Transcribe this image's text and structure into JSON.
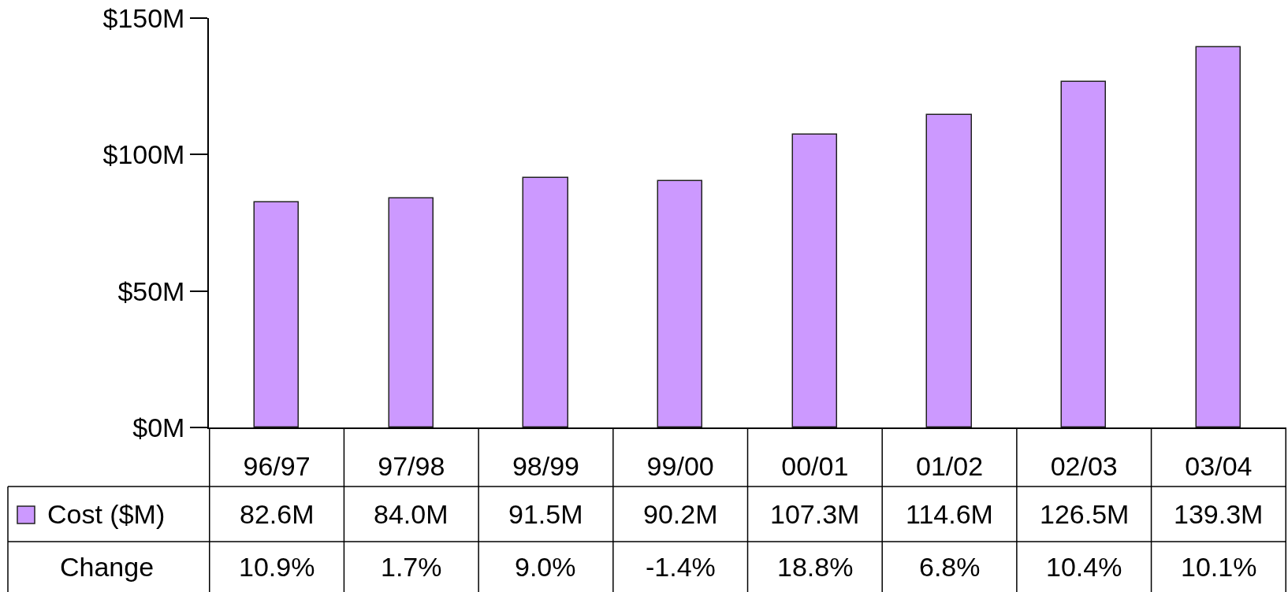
{
  "chart_data": {
    "type": "bar",
    "categories": [
      "96/97",
      "97/98",
      "98/99",
      "99/00",
      "00/01",
      "01/02",
      "02/03",
      "03/04"
    ],
    "series": [
      {
        "name": "Cost ($M)",
        "color": "#cc99ff",
        "values": [
          82.6,
          84.0,
          91.5,
          90.2,
          107.3,
          114.6,
          126.5,
          139.3
        ],
        "value_labels": [
          "82.6M",
          "84.0M",
          "91.5M",
          "90.2M",
          "107.3M",
          "114.6M",
          "126.5M",
          "139.3M"
        ]
      }
    ],
    "annotations": [
      "Change",
      "10.9%",
      "1.7%",
      "9.0%",
      "-1.4%",
      "18.8%",
      "6.8%",
      "10.4%",
      "10.1%"
    ],
    "ylim": [
      0,
      150
    ],
    "yticks": [
      {
        "value": 0,
        "label": "$0M"
      },
      {
        "value": 50,
        "label": "$50M"
      },
      {
        "value": 100,
        "label": "$100M"
      },
      {
        "value": 150,
        "label": "$150M"
      }
    ],
    "grid": false,
    "legend": "bottom left"
  }
}
